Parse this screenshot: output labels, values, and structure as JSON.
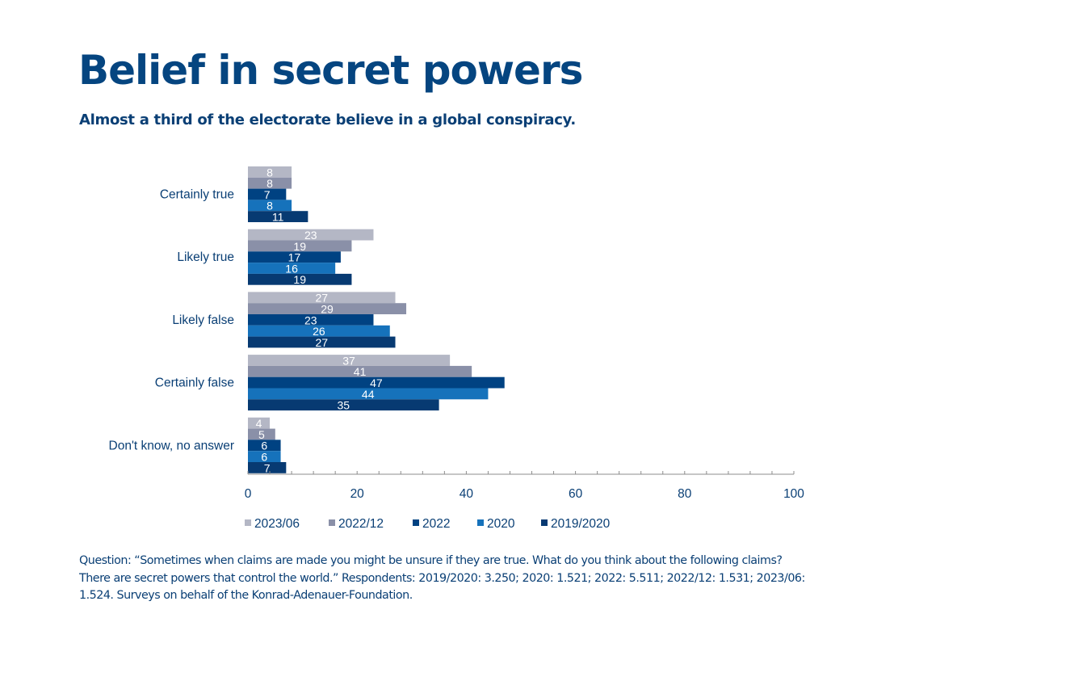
{
  "header": {
    "title": "Belief in secret powers",
    "subtitle": "Almost a third of the electorate believe in a global conspiracy."
  },
  "footnote": "Question: “Sometimes when claims are made you might be unsure if they are true. What do you think about the following claims? There are secret powers that control the world.” Respondents: 2019/2020: 3.250; 2020: 1.521; 2022: 5.511; 2022/12: 1.531; 2023/06: 1.524. Surveys on behalf of the Konrad-Adenauer-Foundation.",
  "chart_data": {
    "type": "bar",
    "orientation": "horizontal",
    "title": "Belief in secret powers",
    "subtitle": "Almost a third of the electorate believe in a global conspiracy.",
    "xlabel": "",
    "ylabel": "",
    "xlim": [
      0,
      100
    ],
    "x_ticks": [
      0,
      20,
      40,
      60,
      80,
      100
    ],
    "x_minor_tick_step": 4,
    "grid": false,
    "legend_position": "bottom",
    "data_labels": true,
    "categories": [
      "Certainly true",
      "Likely true",
      "Likely false",
      "Certainly false",
      "Don't know, no answer"
    ],
    "series": [
      {
        "name": "2023/06",
        "color": "#b4b7c5",
        "values": [
          8,
          23,
          27,
          37,
          4
        ]
      },
      {
        "name": "2022/12",
        "color": "#8a90a8",
        "values": [
          8,
          19,
          29,
          41,
          5
        ]
      },
      {
        "name": "2022",
        "color": "#004282",
        "values": [
          7,
          17,
          23,
          47,
          6
        ]
      },
      {
        "name": "2020",
        "color": "#1672bb",
        "values": [
          8,
          16,
          26,
          44,
          6
        ]
      },
      {
        "name": "2019/2020",
        "color": "#073a72",
        "values": [
          11,
          19,
          27,
          35,
          7
        ]
      }
    ]
  }
}
